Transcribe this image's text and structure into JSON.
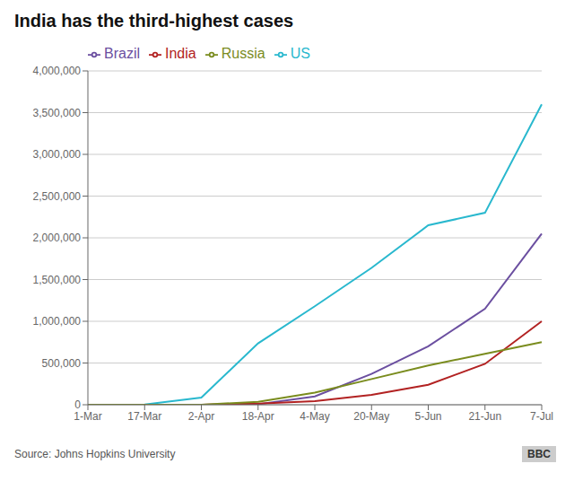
{
  "chart_data": {
    "type": "line",
    "title": "India has the third-highest cases",
    "annotations": [
      "Source: Johns Hopkins University",
      "BBC"
    ],
    "categories": [
      "1-Mar",
      "17-Mar",
      "2-Apr",
      "18-Apr",
      "4-May",
      "20-May",
      "5-Jun",
      "21-Jun",
      "7-Jul"
    ],
    "series": [
      {
        "name": "US",
        "color": "#29b8ce",
        "values": [
          500,
          3000,
          85000,
          735000,
          1180000,
          1640000,
          2150000,
          2300000,
          3600000
        ]
      },
      {
        "name": "Brazil",
        "color": "#6b4fa0",
        "values": [
          0,
          0,
          1000,
          6000,
          100000,
          370000,
          700000,
          1150000,
          2050000
        ]
      },
      {
        "name": "India",
        "color": "#b22222",
        "values": [
          0,
          0,
          1000,
          14000,
          42000,
          118000,
          240000,
          490000,
          1000000
        ]
      },
      {
        "name": "Russia",
        "color": "#7a8c1e",
        "values": [
          0,
          0,
          1000,
          36000,
          145000,
          308000,
          470000,
          610000,
          750000
        ]
      }
    ],
    "ylim": [
      0,
      4000000
    ],
    "yticks": [
      0,
      {
        "value": 500000,
        "label": "500,000"
      },
      {
        "value": 1000000,
        "label": "1,000,000"
      },
      {
        "value": 1500000,
        "label": "1,500,000"
      },
      {
        "value": 2000000,
        "label": "2,000,000"
      },
      {
        "value": 2500000,
        "label": "2,500,000"
      },
      {
        "value": 3000000,
        "label": "3,000,000"
      },
      {
        "value": 3500000,
        "label": "3,500,000"
      },
      {
        "value": 4000000,
        "label": "4,000,000"
      }
    ],
    "grid": true,
    "legend": "top"
  }
}
